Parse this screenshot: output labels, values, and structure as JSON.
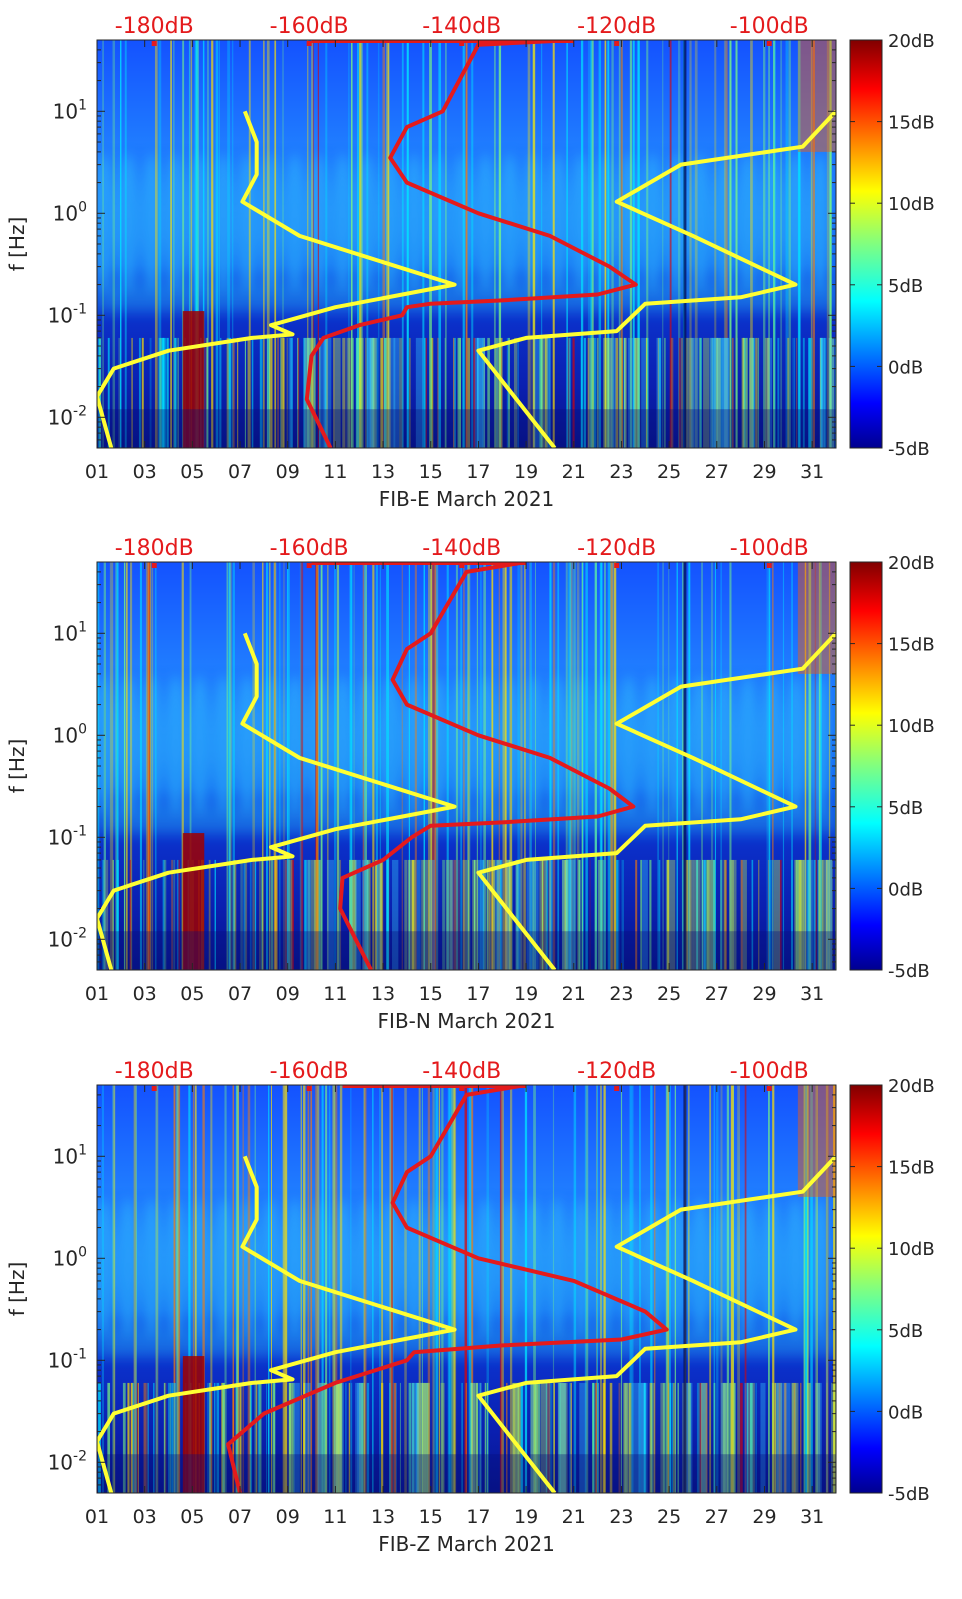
{
  "figure": {
    "colors": {
      "psd_lines": "#ffff33",
      "noise_model": "#e41a1c",
      "top_axis_text": "#e41a1c",
      "axis_text": "#262626"
    }
  },
  "chart_data": [
    {
      "id": "fib-e",
      "type": "heatmap",
      "title": "",
      "xlabel": "FIB-E March 2021",
      "ylabel": "f [Hz]",
      "x_ticks": [
        "01",
        "03",
        "05",
        "07",
        "09",
        "11",
        "13",
        "15",
        "17",
        "19",
        "21",
        "23",
        "25",
        "27",
        "29",
        "31"
      ],
      "x_range_days": [
        1,
        32
      ],
      "y_scale": "log",
      "y_range_hz": [
        0.005,
        50
      ],
      "y_ticks": [
        {
          "value": 0.01,
          "base": "10",
          "exp": "-2"
        },
        {
          "value": 0.1,
          "base": "10",
          "exp": "-1"
        },
        {
          "value": 1,
          "base": "10",
          "exp": "0"
        },
        {
          "value": 10,
          "base": "10",
          "exp": "1"
        }
      ],
      "top_axis_labels": [
        "-180dB",
        "-160dB",
        "-140dB",
        "-120dB",
        "-100dB"
      ],
      "top_axis_day_positions": [
        3.4,
        9.9,
        16.3,
        22.8,
        29.2
      ],
      "colorbar": {
        "ticks": [
          "20dB",
          "15dB",
          "10dB",
          "5dB",
          "0dB",
          "-5dB"
        ],
        "range_db": [
          -5,
          20
        ]
      },
      "series": [
        {
          "name": "yellow-left",
          "points": [
            [
              7.2,
              10
            ],
            [
              7.7,
              5
            ],
            [
              7.7,
              2.4
            ],
            [
              7.1,
              1.3
            ],
            [
              9.5,
              0.6
            ],
            [
              16,
              0.2
            ],
            [
              11,
              0.12
            ],
            [
              8.3,
              0.08
            ],
            [
              9.2,
              0.065
            ],
            [
              7.5,
              0.06
            ],
            [
              4,
              0.045
            ],
            [
              1.7,
              0.03
            ],
            [
              1.0,
              0.016
            ],
            [
              1.6,
              0.005
            ]
          ]
        },
        {
          "name": "yellow-right",
          "points": [
            [
              32,
              10
            ],
            [
              30.6,
              4.5
            ],
            [
              25.5,
              3
            ],
            [
              22.8,
              1.3
            ],
            [
              26,
              0.6
            ],
            [
              30.3,
              0.2
            ],
            [
              28,
              0.15
            ],
            [
              24,
              0.13
            ],
            [
              22.8,
              0.07
            ],
            [
              19,
              0.06
            ],
            [
              17,
              0.045
            ],
            [
              20.2,
              0.005
            ]
          ]
        },
        {
          "name": "red-noise-model",
          "points": [
            [
              21,
              50
            ],
            [
              17,
              45
            ],
            [
              15.5,
              10
            ],
            [
              14,
              7
            ],
            [
              13.3,
              3.5
            ],
            [
              14,
              2
            ],
            [
              17,
              1
            ],
            [
              20,
              0.6
            ],
            [
              22.5,
              0.3
            ],
            [
              23.6,
              0.2
            ],
            [
              22,
              0.16
            ],
            [
              18,
              0.14
            ],
            [
              15,
              0.13
            ],
            [
              14,
              0.12
            ],
            [
              13.8,
              0.1
            ],
            [
              12,
              0.08
            ],
            [
              10.5,
              0.06
            ],
            [
              10,
              0.04
            ],
            [
              9.8,
              0.015
            ],
            [
              10.8,
              0.005
            ]
          ]
        }
      ]
    },
    {
      "id": "fib-n",
      "type": "heatmap",
      "title": "",
      "xlabel": "FIB-N March 2021",
      "ylabel": "f [Hz]",
      "x_ticks": [
        "01",
        "03",
        "05",
        "07",
        "09",
        "11",
        "13",
        "15",
        "17",
        "19",
        "21",
        "23",
        "25",
        "27",
        "29",
        "31"
      ],
      "x_range_days": [
        1,
        32
      ],
      "y_scale": "log",
      "y_range_hz": [
        0.005,
        50
      ],
      "y_ticks": [
        {
          "value": 0.01,
          "base": "10",
          "exp": "-2"
        },
        {
          "value": 0.1,
          "base": "10",
          "exp": "-1"
        },
        {
          "value": 1,
          "base": "10",
          "exp": "0"
        },
        {
          "value": 10,
          "base": "10",
          "exp": "1"
        }
      ],
      "top_axis_labels": [
        "-180dB",
        "-160dB",
        "-140dB",
        "-120dB",
        "-100dB"
      ],
      "top_axis_day_positions": [
        3.4,
        9.9,
        16.3,
        22.8,
        29.2
      ],
      "colorbar": {
        "ticks": [
          "20dB",
          "15dB",
          "10dB",
          "5dB",
          "0dB",
          "-5dB"
        ],
        "range_db": [
          -5,
          20
        ]
      },
      "series": [
        {
          "name": "yellow-left",
          "points": [
            [
              7.2,
              10
            ],
            [
              7.7,
              5
            ],
            [
              7.7,
              2.4
            ],
            [
              7.1,
              1.3
            ],
            [
              9.5,
              0.6
            ],
            [
              16,
              0.2
            ],
            [
              11,
              0.12
            ],
            [
              8.3,
              0.08
            ],
            [
              9.2,
              0.065
            ],
            [
              7.5,
              0.06
            ],
            [
              4,
              0.045
            ],
            [
              1.7,
              0.03
            ],
            [
              1.0,
              0.016
            ],
            [
              1.6,
              0.005
            ]
          ]
        },
        {
          "name": "yellow-right",
          "points": [
            [
              32,
              10
            ],
            [
              30.6,
              4.5
            ],
            [
              25.5,
              3
            ],
            [
              22.8,
              1.3
            ],
            [
              26,
              0.6
            ],
            [
              30.3,
              0.2
            ],
            [
              28,
              0.15
            ],
            [
              24,
              0.13
            ],
            [
              22.8,
              0.07
            ],
            [
              19,
              0.06
            ],
            [
              17,
              0.045
            ],
            [
              20.2,
              0.005
            ]
          ]
        },
        {
          "name": "red-noise-model",
          "points": [
            [
              19,
              50
            ],
            [
              16.5,
              40
            ],
            [
              15,
              10
            ],
            [
              14,
              7
            ],
            [
              13.4,
              3.5
            ],
            [
              14,
              2
            ],
            [
              17,
              1
            ],
            [
              20,
              0.6
            ],
            [
              22.5,
              0.3
            ],
            [
              23.5,
              0.2
            ],
            [
              22,
              0.16
            ],
            [
              18,
              0.14
            ],
            [
              15,
              0.13
            ],
            [
              14.2,
              0.1
            ],
            [
              13,
              0.06
            ],
            [
              11.3,
              0.04
            ],
            [
              11.2,
              0.02
            ],
            [
              12.5,
              0.005
            ]
          ]
        }
      ]
    },
    {
      "id": "fib-z",
      "type": "heatmap",
      "title": "",
      "xlabel": "FIB-Z March 2021",
      "ylabel": "f [Hz]",
      "x_ticks": [
        "01",
        "03",
        "05",
        "07",
        "09",
        "11",
        "13",
        "15",
        "17",
        "19",
        "21",
        "23",
        "25",
        "27",
        "29",
        "31"
      ],
      "x_range_days": [
        1,
        32
      ],
      "y_scale": "log",
      "y_range_hz": [
        0.005,
        50
      ],
      "y_ticks": [
        {
          "value": 0.01,
          "base": "10",
          "exp": "-2"
        },
        {
          "value": 0.1,
          "base": "10",
          "exp": "-1"
        },
        {
          "value": 1,
          "base": "10",
          "exp": "0"
        },
        {
          "value": 10,
          "base": "10",
          "exp": "1"
        }
      ],
      "top_axis_labels": [
        "-180dB",
        "-160dB",
        "-140dB",
        "-120dB",
        "-100dB"
      ],
      "top_axis_day_positions": [
        3.4,
        9.9,
        16.3,
        22.8,
        29.2
      ],
      "colorbar": {
        "ticks": [
          "20dB",
          "15dB",
          "10dB",
          "5dB",
          "0dB",
          "-5dB"
        ],
        "range_db": [
          -5,
          20
        ]
      },
      "series": [
        {
          "name": "yellow-left",
          "points": [
            [
              7.2,
              10
            ],
            [
              7.7,
              5
            ],
            [
              7.7,
              2.4
            ],
            [
              7.1,
              1.3
            ],
            [
              9.5,
              0.6
            ],
            [
              16,
              0.2
            ],
            [
              11,
              0.12
            ],
            [
              8.3,
              0.08
            ],
            [
              9.2,
              0.065
            ],
            [
              7.5,
              0.06
            ],
            [
              4,
              0.045
            ],
            [
              1.7,
              0.03
            ],
            [
              1.0,
              0.016
            ],
            [
              1.6,
              0.005
            ]
          ]
        },
        {
          "name": "yellow-right",
          "points": [
            [
              32,
              10
            ],
            [
              30.6,
              4.5
            ],
            [
              25.5,
              3
            ],
            [
              22.8,
              1.3
            ],
            [
              26,
              0.6
            ],
            [
              30.3,
              0.2
            ],
            [
              28,
              0.15
            ],
            [
              24,
              0.13
            ],
            [
              22.8,
              0.07
            ],
            [
              19,
              0.06
            ],
            [
              17,
              0.045
            ],
            [
              20.2,
              0.005
            ]
          ]
        },
        {
          "name": "red-noise-model",
          "points": [
            [
              19,
              50
            ],
            [
              16.5,
              40
            ],
            [
              15,
              10
            ],
            [
              14,
              7
            ],
            [
              13.4,
              3.5
            ],
            [
              14,
              2
            ],
            [
              17,
              1
            ],
            [
              21,
              0.6
            ],
            [
              24,
              0.3
            ],
            [
              24.9,
              0.2
            ],
            [
              23,
              0.16
            ],
            [
              18,
              0.14
            ],
            [
              14.3,
              0.12
            ],
            [
              14,
              0.1
            ],
            [
              11,
              0.06
            ],
            [
              8,
              0.03
            ],
            [
              6.5,
              0.015
            ],
            [
              7,
              0.005
            ]
          ]
        }
      ]
    }
  ]
}
